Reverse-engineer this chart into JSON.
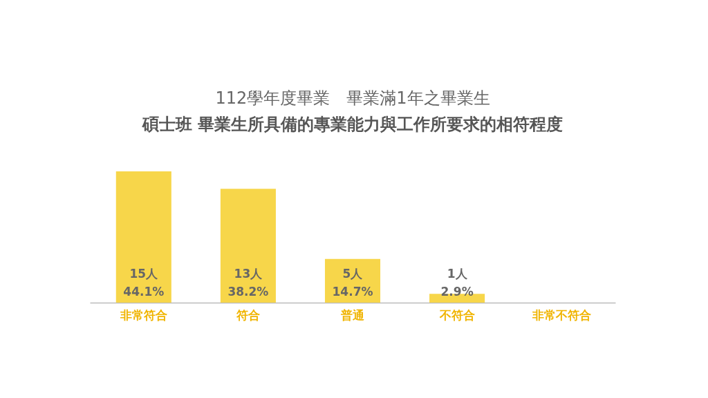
{
  "chart_data": {
    "type": "bar",
    "title": "112學年度畢業　畢業滿1年之畢業生",
    "subtitle": "碩士班  畢業生所具備的專業能力與工作所要求的相符程度",
    "categories": [
      "非常符合",
      "符合",
      "普通",
      "不符合",
      "非常不符合"
    ],
    "values": [
      15,
      13,
      5,
      1,
      0
    ],
    "value_labels": [
      "15人\n44.1%",
      "13人\n38.2%",
      "5人\n14.7%",
      "1人\n2.9%",
      null
    ],
    "color": "#f7d64a"
  }
}
